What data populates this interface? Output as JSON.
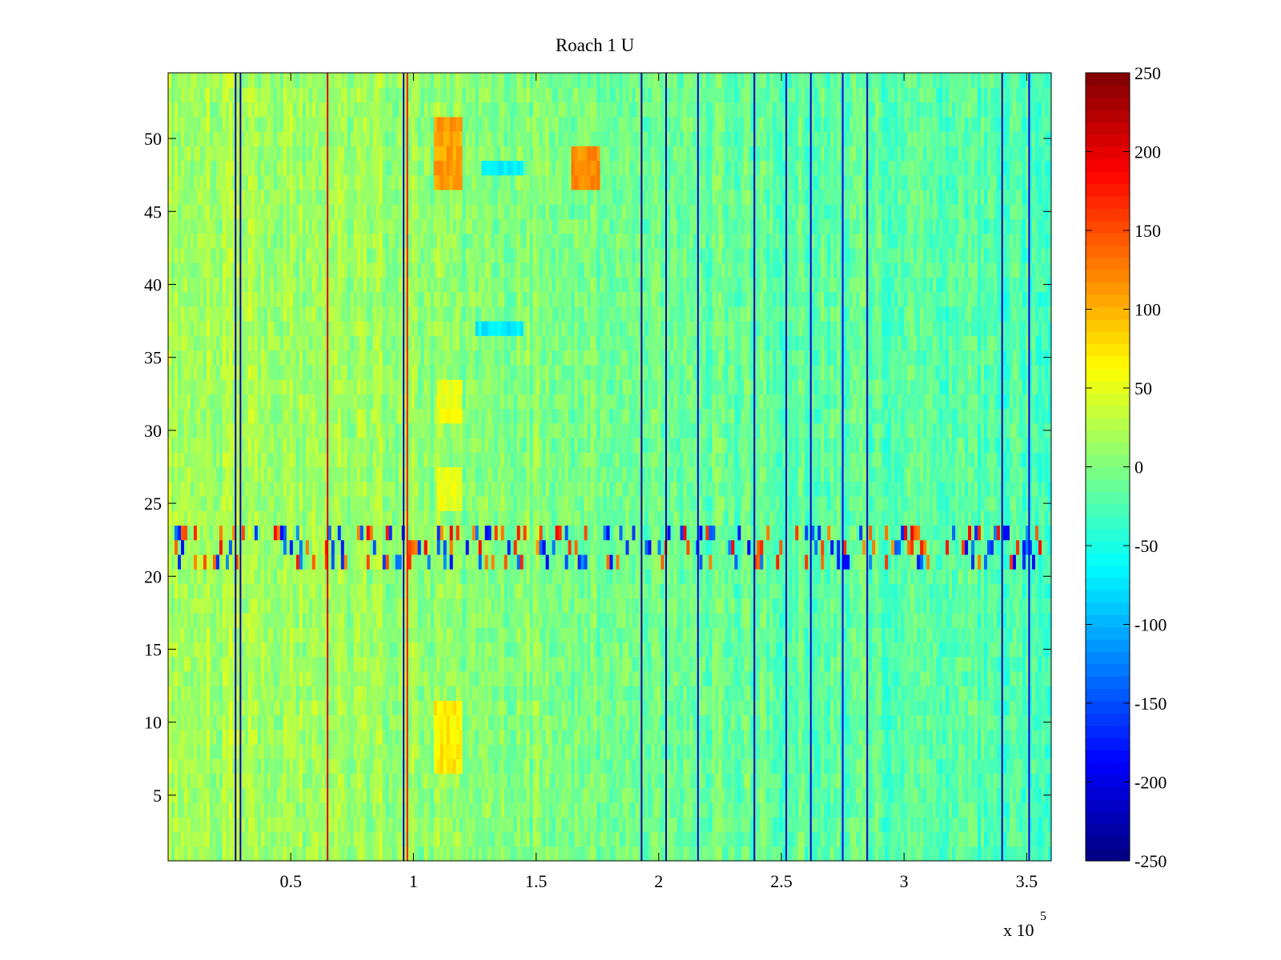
{
  "chart_data": {
    "type": "heatmap",
    "title": "Roach 1 U",
    "xlabel": "",
    "ylabel": "",
    "x_multiplier_label": "x 10",
    "x_multiplier_exponent": "5",
    "xlim": [
      0,
      360000
    ],
    "ylim": [
      0.5,
      54.5
    ],
    "x_ticks": [
      {
        "value": 50000,
        "label": "0.5"
      },
      {
        "value": 100000,
        "label": "1"
      },
      {
        "value": 150000,
        "label": "1.5"
      },
      {
        "value": 200000,
        "label": "2"
      },
      {
        "value": 250000,
        "label": "2.5"
      },
      {
        "value": 300000,
        "label": "3"
      },
      {
        "value": 350000,
        "label": "3.5"
      }
    ],
    "y_ticks": [
      {
        "value": 5,
        "label": "5"
      },
      {
        "value": 10,
        "label": "10"
      },
      {
        "value": 15,
        "label": "15"
      },
      {
        "value": 20,
        "label": "20"
      },
      {
        "value": 25,
        "label": "25"
      },
      {
        "value": 30,
        "label": "30"
      },
      {
        "value": 35,
        "label": "35"
      },
      {
        "value": 40,
        "label": "40"
      },
      {
        "value": 45,
        "label": "45"
      },
      {
        "value": 50,
        "label": "50"
      }
    ],
    "rows": 54,
    "colorbar": {
      "colormap": "jet",
      "clim": [
        -250,
        250
      ],
      "ticks": [
        {
          "value": 250,
          "label": "250"
        },
        {
          "value": 200,
          "label": "200"
        },
        {
          "value": 150,
          "label": "150"
        },
        {
          "value": 100,
          "label": "100"
        },
        {
          "value": 50,
          "label": "50"
        },
        {
          "value": 0,
          "label": "0"
        },
        {
          "value": -50,
          "label": "-50"
        },
        {
          "value": -100,
          "label": "-100"
        },
        {
          "value": -150,
          "label": "-150"
        },
        {
          "value": -200,
          "label": "-200"
        },
        {
          "value": -250,
          "label": "-250"
        }
      ]
    },
    "baseline_by_x": [
      {
        "x": 0,
        "value": 22
      },
      {
        "x": 100000,
        "value": 10
      },
      {
        "x": 200000,
        "value": -10
      },
      {
        "x": 360000,
        "value": -25
      }
    ],
    "vertical_stripes": [
      {
        "x": 27500,
        "value": -230
      },
      {
        "x": 29500,
        "value": -220
      },
      {
        "x": 65000,
        "value": 200
      },
      {
        "x": 96000,
        "value": -210
      },
      {
        "x": 97500,
        "value": 180
      },
      {
        "x": 193000,
        "value": -240
      },
      {
        "x": 203000,
        "value": -230
      },
      {
        "x": 216000,
        "value": -200
      },
      {
        "x": 239000,
        "value": -230
      },
      {
        "x": 252000,
        "value": -220
      },
      {
        "x": 262000,
        "value": -210
      },
      {
        "x": 275000,
        "value": -200
      },
      {
        "x": 285000,
        "value": -220
      },
      {
        "x": 340000,
        "value": -230
      },
      {
        "x": 351000,
        "value": -200
      }
    ],
    "hot_spots": [
      {
        "x_range": [
          108000,
          120000
        ],
        "y_range": [
          47,
          51
        ],
        "value": 110
      },
      {
        "x_range": [
          165000,
          176000
        ],
        "y_range": [
          47,
          49
        ],
        "value": 120
      },
      {
        "x_range": [
          108000,
          120000
        ],
        "y_range": [
          7,
          11
        ],
        "value": 70
      },
      {
        "x_range": [
          110000,
          120000
        ],
        "y_range": [
          31,
          33
        ],
        "value": 55
      },
      {
        "x_range": [
          110000,
          120000
        ],
        "y_range": [
          25,
          27
        ],
        "value": 55
      },
      {
        "x_range": [
          128000,
          145000
        ],
        "y_range": [
          47.5,
          48.5
        ],
        "value": -75
      },
      {
        "x_range": [
          125000,
          145000
        ],
        "y_range": [
          36.5,
          37.5
        ],
        "value": -70
      }
    ],
    "noisy_band": {
      "y_range": [
        20.5,
        23.5
      ],
      "amplitude": 190
    }
  }
}
